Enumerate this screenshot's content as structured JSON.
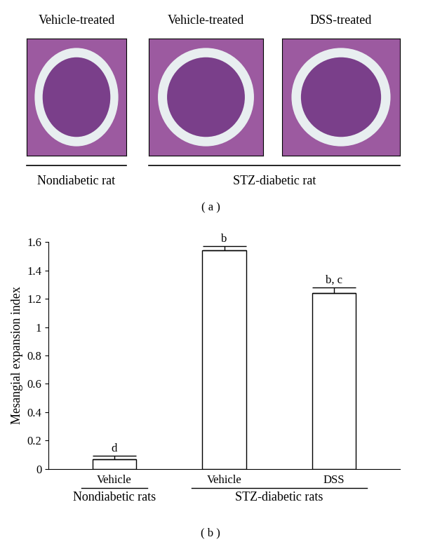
{
  "panel_a": {
    "images": [
      {
        "title": "Vehicle-treated"
      },
      {
        "title": "Vehicle-treated"
      },
      {
        "title": "DSS-treated"
      }
    ],
    "groups": [
      {
        "name": "Nondiabetic rat",
        "size": 1
      },
      {
        "name": "STZ-diabetic rat",
        "size": 2
      }
    ],
    "label": "( a )"
  },
  "chart_data": {
    "type": "bar",
    "categories": [
      "Vehicle",
      "Vehicle",
      "DSS"
    ],
    "values": [
      0.07,
      1.54,
      1.24
    ],
    "errors": [
      0.02,
      0.03,
      0.04
    ],
    "bar_letters": [
      "d",
      "b",
      "b, c"
    ],
    "groups": [
      {
        "name": "Nondiabetic rats",
        "size": 1
      },
      {
        "name": "STZ-diabetic rats",
        "size": 2
      }
    ],
    "y_label": "Mesangial expansion index",
    "ylim": [
      0,
      1.6
    ],
    "yticks": [
      0,
      0.2,
      0.4,
      0.6,
      0.8,
      1,
      1.2,
      1.4,
      1.6
    ],
    "color": "#ffffff",
    "label": "( b )"
  }
}
